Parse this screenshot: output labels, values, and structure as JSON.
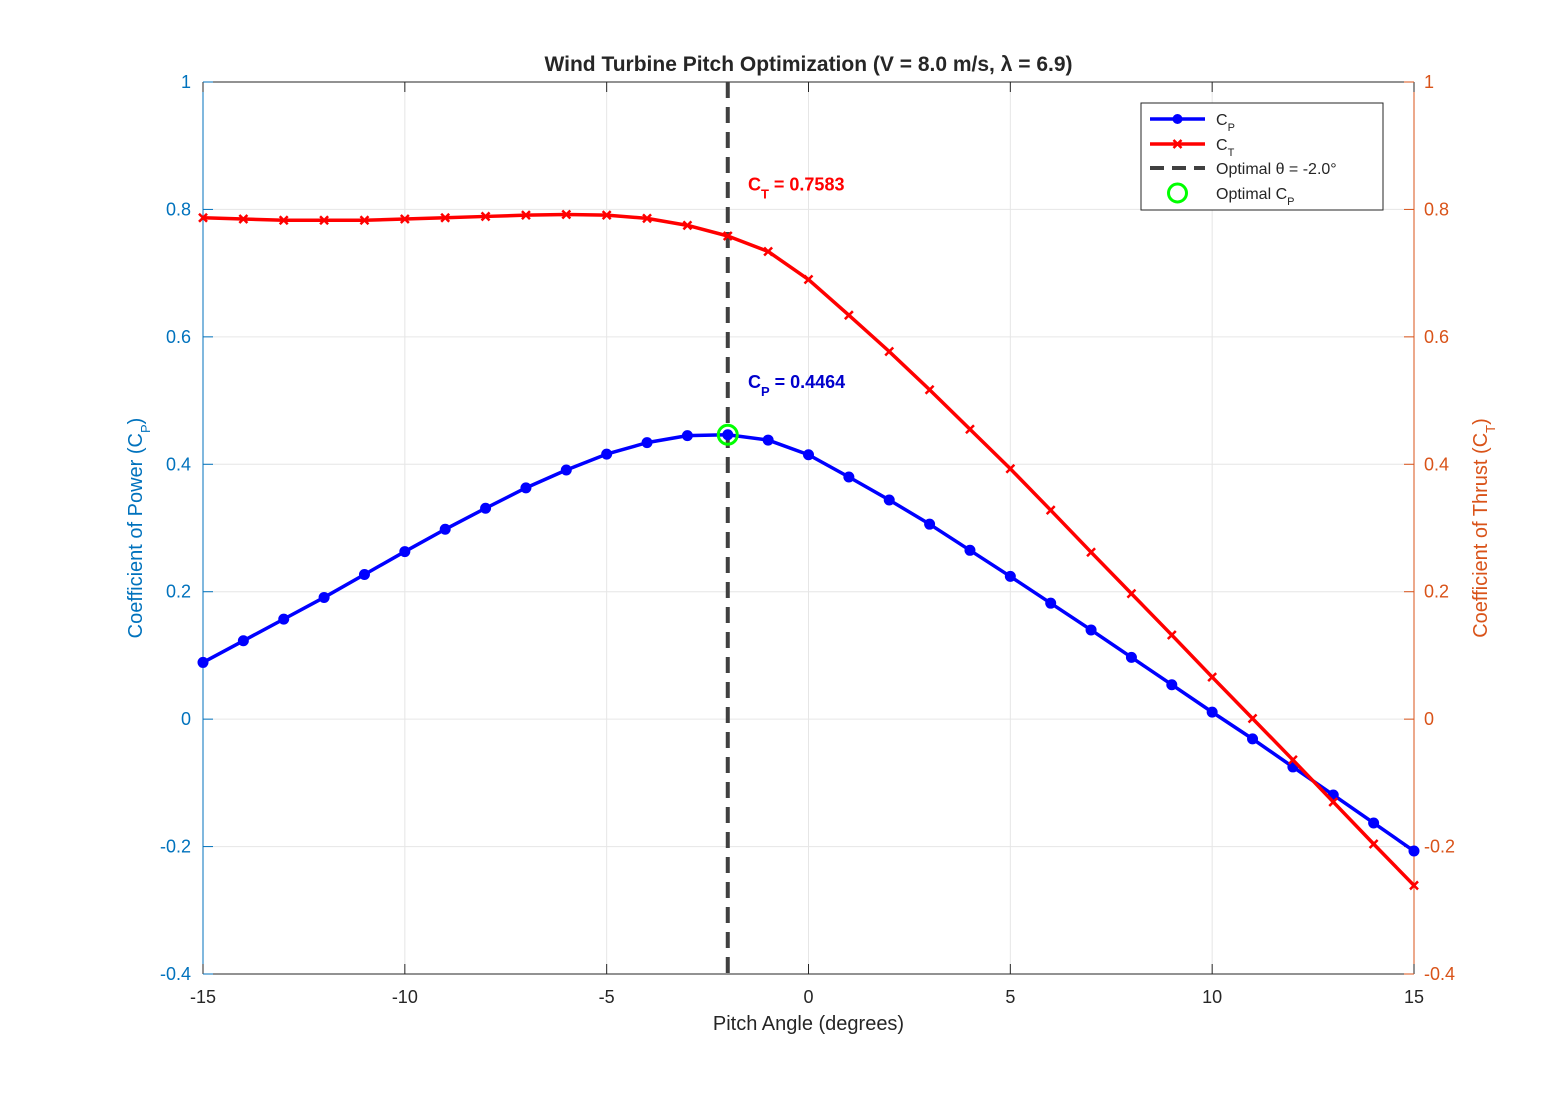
{
  "chart_data": {
    "type": "line",
    "title": "Wind Turbine Pitch Optimization (V = 8.0 m/s, λ = 6.9)",
    "xlabel": "Pitch Angle (degrees)",
    "ylabel_left": {
      "prefix": "Coefficient of Power (C",
      "sub": "P",
      "suffix": ")"
    },
    "ylabel_right": {
      "prefix": "Coefficient of Thrust (C",
      "sub": "T",
      "suffix": ")"
    },
    "xlim": [
      -15,
      15
    ],
    "ylim_left": [
      -0.4,
      1
    ],
    "ylim_right": [
      -0.4,
      1
    ],
    "x_ticks": [
      -15,
      -10,
      -5,
      0,
      5,
      10,
      15
    ],
    "y_ticks": [
      -0.4,
      -0.2,
      0,
      0.2,
      0.4,
      0.6,
      0.8,
      1
    ],
    "x_tick_labels": [
      "-15",
      "-10",
      "-5",
      "0",
      "5",
      "10",
      "15"
    ],
    "y_tick_labels": [
      "-0.4",
      "-0.2",
      "0",
      "0.2",
      "0.4",
      "0.6",
      "0.8",
      "1"
    ],
    "grid": true,
    "x": [
      -15,
      -14,
      -13,
      -12,
      -11,
      -10,
      -9,
      -8,
      -7,
      -6,
      -5,
      -4,
      -3,
      -2,
      -1,
      0,
      1,
      2,
      3,
      4,
      5,
      6,
      7,
      8,
      9,
      10,
      11,
      12,
      13,
      14,
      15
    ],
    "series": [
      {
        "name": "C_P",
        "axis": "left",
        "color": "#0000ff",
        "marker": "circle",
        "values": [
          0.089,
          0.123,
          0.157,
          0.191,
          0.227,
          0.263,
          0.298,
          0.331,
          0.363,
          0.391,
          0.416,
          0.434,
          0.445,
          0.4464,
          0.438,
          0.415,
          0.38,
          0.344,
          0.306,
          0.265,
          0.224,
          0.182,
          0.14,
          0.097,
          0.054,
          0.011,
          -0.031,
          -0.075,
          -0.119,
          -0.163,
          -0.207
        ]
      },
      {
        "name": "C_T",
        "axis": "right",
        "color": "#ff0000",
        "marker": "x",
        "values": [
          0.787,
          0.785,
          0.783,
          0.783,
          0.783,
          0.785,
          0.787,
          0.789,
          0.791,
          0.792,
          0.791,
          0.786,
          0.775,
          0.7583,
          0.734,
          0.69,
          0.634,
          0.577,
          0.517,
          0.455,
          0.393,
          0.328,
          0.262,
          0.197,
          0.132,
          0.066,
          0.001,
          -0.064,
          -0.13,
          -0.196,
          -0.261
        ]
      }
    ],
    "optimal_line": {
      "x": -2,
      "color": "#404040",
      "style": "dashed"
    },
    "optimal_marker": {
      "x": -2,
      "y": 0.4464,
      "color": "#00ff00"
    },
    "annotations": [
      {
        "prefix": "C",
        "sub": "T",
        "text": " = 0.7583",
        "x": -1.5,
        "y": 0.83,
        "color": "#ff0000"
      },
      {
        "prefix": "C",
        "sub": "P",
        "text": " = 0.4464",
        "x": -1.5,
        "y": 0.52,
        "color": "#0000cc"
      }
    ],
    "legend": {
      "position": "top-right",
      "entries": [
        {
          "prefix": "C",
          "sub": "P",
          "text": ""
        },
        {
          "prefix": "C",
          "sub": "T",
          "text": ""
        },
        {
          "prefix": "Optimal ",
          "sub": "",
          "text": "θ = -2.0°"
        },
        {
          "prefix": "Optimal C",
          "sub": "P",
          "text": ""
        }
      ]
    },
    "colors": {
      "left_axis": "#0072bd",
      "right_axis": "#d95319",
      "grid": "#e6e6e6"
    }
  }
}
